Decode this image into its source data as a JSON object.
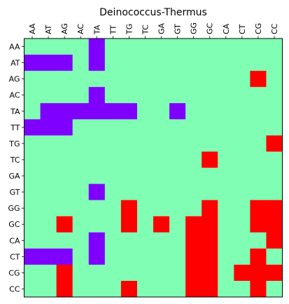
{
  "chart_data": {
    "type": "heatmap",
    "title": "Deinococcus-Thermus",
    "xlabel": "",
    "ylabel": "",
    "x_categories": [
      "AA",
      "AT",
      "AG",
      "AC",
      "TA",
      "TT",
      "TG",
      "TC",
      "GA",
      "GT",
      "GG",
      "GC",
      "CA",
      "CT",
      "CG",
      "CC"
    ],
    "y_categories": [
      "AA",
      "AT",
      "AG",
      "AC",
      "TA",
      "TT",
      "TG",
      "TC",
      "GA",
      "GT",
      "GG",
      "GC",
      "CA",
      "CT",
      "CG",
      "CC"
    ],
    "x_tick_position": "top",
    "value_scale": [
      -1,
      0,
      1
    ],
    "colors": {
      "-1": "#8000ff",
      "0": "#80ffb4",
      "1": "#ff0000"
    },
    "grid": false,
    "values": [
      [
        0,
        0,
        0,
        0,
        -1,
        0,
        0,
        0,
        0,
        0,
        0,
        0,
        0,
        0,
        0,
        0
      ],
      [
        -1,
        -1,
        -1,
        0,
        -1,
        0,
        0,
        0,
        0,
        0,
        0,
        0,
        0,
        0,
        0,
        0
      ],
      [
        0,
        0,
        0,
        0,
        0,
        0,
        0,
        0,
        0,
        0,
        0,
        0,
        0,
        0,
        1,
        0
      ],
      [
        0,
        0,
        0,
        0,
        -1,
        0,
        0,
        0,
        0,
        0,
        0,
        0,
        0,
        0,
        0,
        0
      ],
      [
        0,
        -1,
        -1,
        -1,
        -1,
        -1,
        -1,
        0,
        0,
        -1,
        0,
        0,
        0,
        0,
        0,
        0
      ],
      [
        -1,
        -1,
        -1,
        0,
        0,
        0,
        0,
        0,
        0,
        0,
        0,
        0,
        0,
        0,
        0,
        0
      ],
      [
        0,
        0,
        0,
        0,
        0,
        0,
        0,
        0,
        0,
        0,
        0,
        0,
        0,
        0,
        0,
        1
      ],
      [
        0,
        0,
        0,
        0,
        0,
        0,
        0,
        0,
        0,
        0,
        0,
        1,
        0,
        0,
        0,
        0
      ],
      [
        0,
        0,
        0,
        0,
        0,
        0,
        0,
        0,
        0,
        0,
        0,
        0,
        0,
        0,
        0,
        0
      ],
      [
        0,
        0,
        0,
        0,
        -1,
        0,
        0,
        0,
        0,
        0,
        0,
        0,
        0,
        0,
        0,
        0
      ],
      [
        0,
        0,
        0,
        0,
        0,
        0,
        1,
        0,
        0,
        0,
        0,
        1,
        0,
        0,
        1,
        1
      ],
      [
        0,
        0,
        1,
        0,
        0,
        0,
        1,
        0,
        1,
        0,
        1,
        1,
        0,
        0,
        1,
        1
      ],
      [
        0,
        0,
        0,
        0,
        -1,
        0,
        0,
        0,
        0,
        0,
        1,
        1,
        0,
        0,
        0,
        1
      ],
      [
        -1,
        -1,
        -1,
        0,
        -1,
        0,
        0,
        0,
        0,
        0,
        1,
        1,
        0,
        0,
        1,
        0
      ],
      [
        0,
        0,
        1,
        0,
        0,
        0,
        0,
        0,
        0,
        0,
        1,
        1,
        0,
        1,
        1,
        1
      ],
      [
        0,
        0,
        1,
        0,
        0,
        0,
        1,
        0,
        0,
        0,
        1,
        1,
        0,
        0,
        1,
        0
      ]
    ]
  }
}
